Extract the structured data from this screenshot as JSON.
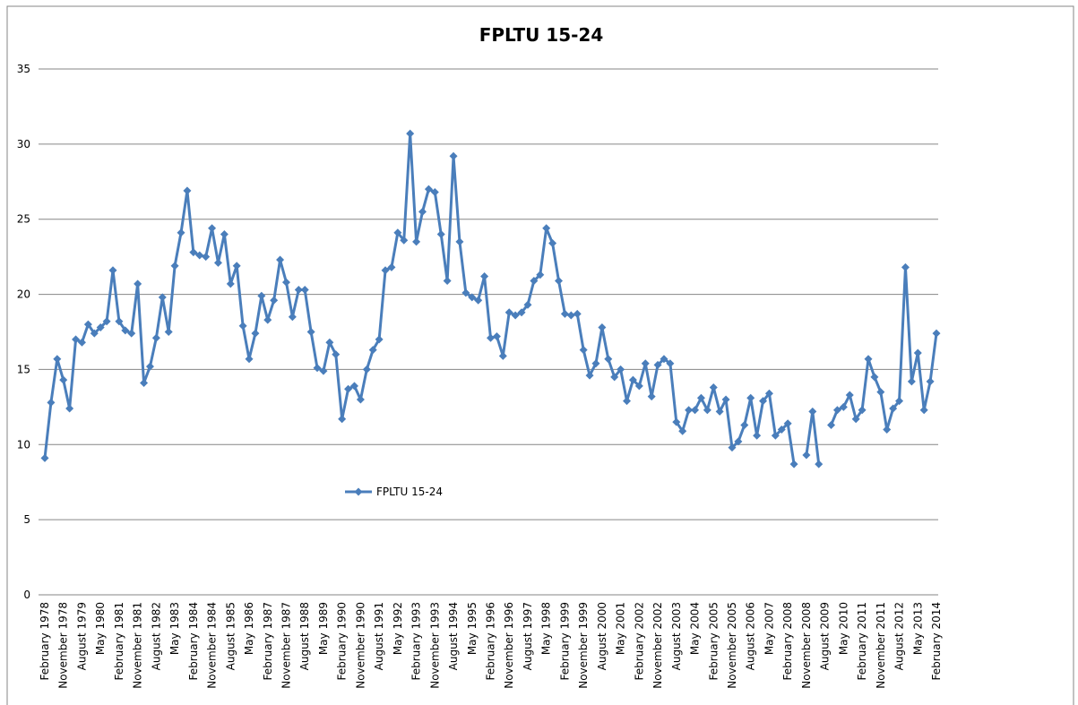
{
  "chart_data": {
    "type": "line",
    "title": "FPLTU 15-24",
    "categories": [
      "February 1978",
      null,
      null,
      "November 1978",
      null,
      null,
      "August 1979",
      null,
      null,
      "May 1980",
      null,
      null,
      "February 1981",
      null,
      null,
      "November 1981",
      null,
      null,
      "August 1982",
      null,
      null,
      "May 1983",
      null,
      null,
      "February 1984",
      null,
      null,
      "November 1984",
      null,
      null,
      "August 1985",
      null,
      null,
      "May 1986",
      null,
      null,
      "February 1987",
      null,
      null,
      "November 1987",
      null,
      null,
      "August 1988",
      null,
      null,
      "May 1989",
      null,
      null,
      "February 1990",
      null,
      null,
      "November 1990",
      null,
      null,
      "August 1991",
      null,
      null,
      "May 1992",
      null,
      null,
      "February 1993",
      null,
      null,
      "November 1993",
      null,
      null,
      "August 1994",
      null,
      null,
      "May 1995",
      null,
      null,
      "February 1996",
      null,
      null,
      "November 1996",
      null,
      null,
      "August 1997",
      null,
      null,
      "May 1998",
      null,
      null,
      "February 1999",
      null,
      null,
      "November 1999",
      null,
      null,
      "August 2000",
      null,
      null,
      "May 2001",
      null,
      null,
      "February 2002",
      null,
      null,
      "November 2002",
      null,
      null,
      "August 2003",
      null,
      null,
      "May 2004",
      null,
      null,
      "February 2005",
      null,
      null,
      "November 2005",
      null,
      null,
      "August 2006",
      null,
      null,
      "May 2007",
      null,
      null,
      "February 2008",
      null,
      null,
      "November 2008",
      null,
      null,
      "August 2009",
      null,
      null,
      "May 2010",
      null,
      null,
      "February 2011",
      null,
      null,
      "November 2011",
      null,
      null,
      "August 2012",
      null,
      null,
      "May 2013",
      null,
      null,
      "February 2014"
    ],
    "series": [
      {
        "name": "FPLTU 15-24",
        "color": "#4a7ebb",
        "values": [
          9.1,
          12.8,
          15.7,
          14.3,
          12.4,
          17.0,
          16.8,
          18.0,
          17.4,
          17.8,
          18.2,
          21.6,
          18.2,
          17.6,
          17.4,
          20.7,
          14.1,
          15.2,
          17.1,
          19.8,
          17.5,
          21.9,
          24.1,
          26.9,
          22.8,
          22.6,
          22.5,
          24.4,
          22.1,
          24.0,
          20.7,
          21.9,
          17.9,
          15.7,
          17.4,
          19.9,
          18.3,
          19.6,
          22.3,
          20.8,
          18.5,
          20.3,
          20.3,
          17.5,
          15.1,
          14.9,
          16.8,
          16.0,
          11.7,
          13.7,
          13.9,
          13.0,
          15.0,
          16.3,
          17.0,
          21.6,
          21.8,
          24.1,
          23.6,
          30.7,
          23.5,
          25.5,
          27.0,
          26.8,
          24.0,
          20.9,
          29.2,
          23.5,
          20.1,
          19.8,
          19.6,
          21.2,
          17.1,
          17.2,
          15.9,
          18.8,
          18.6,
          18.8,
          19.3,
          20.9,
          21.3,
          24.4,
          23.4,
          20.9,
          18.7,
          18.6,
          18.7,
          16.3,
          14.6,
          15.4,
          17.8,
          15.7,
          14.5,
          15.0,
          12.9,
          14.3,
          13.9,
          15.4,
          13.2,
          15.3,
          15.7,
          15.4,
          11.5,
          10.9,
          12.3,
          12.3,
          13.1,
          12.3,
          13.8,
          12.2,
          13.0,
          9.8,
          10.2,
          11.3,
          13.1,
          10.6,
          12.9,
          13.4,
          10.6,
          11.0,
          11.4,
          8.7,
          null,
          9.3,
          12.2,
          8.7,
          null,
          11.3,
          12.3,
          12.5,
          13.3,
          11.7,
          12.3,
          15.7,
          14.5,
          13.5,
          11.0,
          12.4,
          12.9,
          21.8,
          14.2,
          16.1,
          12.3,
          14.2,
          17.4
        ]
      }
    ],
    "ylim": [
      0,
      35
    ],
    "yticks": [
      0,
      5,
      10,
      15,
      20,
      25,
      30,
      35
    ],
    "grid": true,
    "legend": "inside"
  }
}
